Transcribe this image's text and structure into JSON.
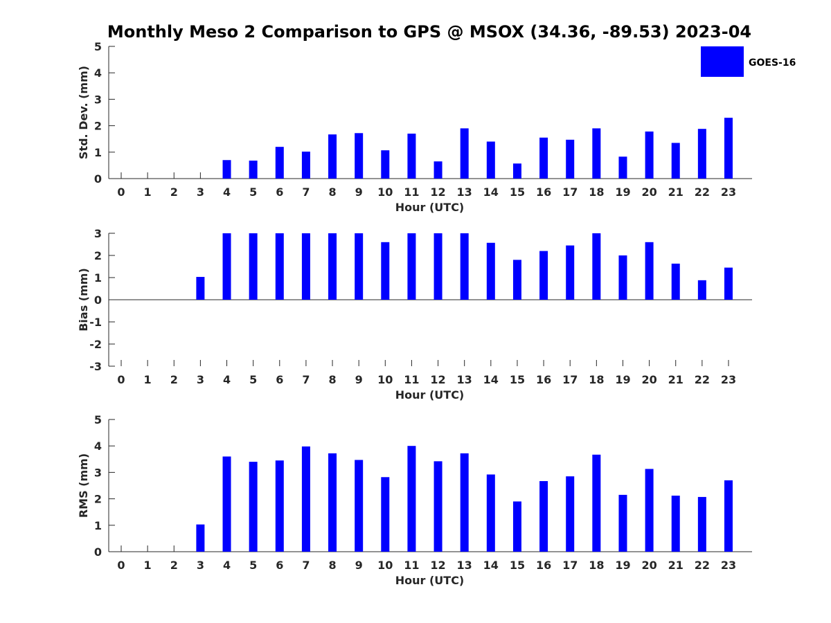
{
  "title": "Monthly Meso 2 Comparison to GPS @ MSOX (34.36, -89.53) 2023-04",
  "legend": {
    "label": "GOES-16",
    "color": "#0000ff",
    "placement": "top-right"
  },
  "chart_data": [
    {
      "type": "bar",
      "ylabel": "Std. Dev. (mm)",
      "xlabel": "Hour (UTC)",
      "categories": [
        "0",
        "1",
        "2",
        "3",
        "4",
        "5",
        "6",
        "7",
        "8",
        "9",
        "10",
        "11",
        "12",
        "13",
        "14",
        "15",
        "16",
        "17",
        "18",
        "19",
        "20",
        "21",
        "22",
        "23"
      ],
      "ylim": [
        0,
        5
      ],
      "yticks": [
        "0",
        "1",
        "2",
        "3",
        "4",
        "5"
      ],
      "series": [
        {
          "name": "GOES-16",
          "color": "#0000ff",
          "values": [
            null,
            null,
            null,
            null,
            0.7,
            0.68,
            1.2,
            1.02,
            1.67,
            1.72,
            1.07,
            1.7,
            0.65,
            1.9,
            1.4,
            0.57,
            1.55,
            1.47,
            1.9,
            0.83,
            1.78,
            1.35,
            1.88,
            2.3
          ]
        }
      ],
      "grid": false
    },
    {
      "type": "bar",
      "ylabel": "Bias (mm)",
      "xlabel": "Hour (UTC)",
      "categories": [
        "0",
        "1",
        "2",
        "3",
        "4",
        "5",
        "6",
        "7",
        "8",
        "9",
        "10",
        "11",
        "12",
        "13",
        "14",
        "15",
        "16",
        "17",
        "18",
        "19",
        "20",
        "21",
        "22",
        "23"
      ],
      "ylim": [
        -3,
        3
      ],
      "yticks": [
        "-3",
        "-2",
        "-1",
        "0",
        "1",
        "2",
        "3"
      ],
      "series": [
        {
          "name": "GOES-16",
          "color": "#0000ff",
          "values": [
            null,
            null,
            null,
            1.03,
            3,
            3,
            3,
            3,
            3,
            3,
            2.6,
            3,
            3,
            3,
            2.57,
            1.8,
            2.2,
            2.45,
            3,
            2.0,
            2.6,
            1.63,
            0.88,
            1.45
          ]
        }
      ],
      "grid": false
    },
    {
      "type": "bar",
      "ylabel": "RMS (mm)",
      "xlabel": "Hour (UTC)",
      "categories": [
        "0",
        "1",
        "2",
        "3",
        "4",
        "5",
        "6",
        "7",
        "8",
        "9",
        "10",
        "11",
        "12",
        "13",
        "14",
        "15",
        "16",
        "17",
        "18",
        "19",
        "20",
        "21",
        "22",
        "23"
      ],
      "ylim": [
        0,
        5
      ],
      "yticks": [
        "0",
        "1",
        "2",
        "3",
        "4",
        "5"
      ],
      "series": [
        {
          "name": "GOES-16",
          "color": "#0000ff",
          "values": [
            null,
            null,
            null,
            1.03,
            3.6,
            3.4,
            3.45,
            3.98,
            3.72,
            3.47,
            2.82,
            4.0,
            3.42,
            3.72,
            2.92,
            1.9,
            2.67,
            2.85,
            3.67,
            2.15,
            3.13,
            2.12,
            2.07,
            2.7
          ]
        }
      ],
      "grid": false
    }
  ]
}
